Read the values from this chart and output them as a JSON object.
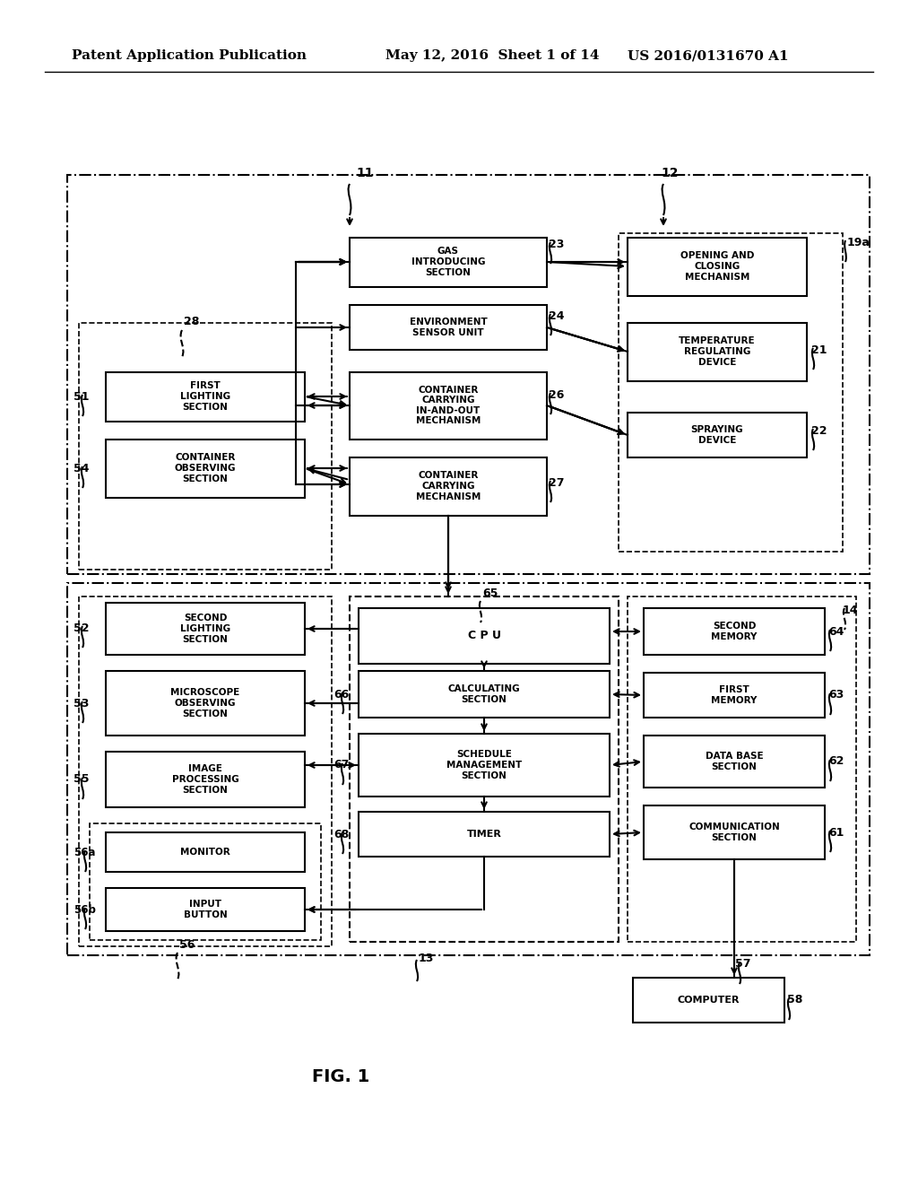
{
  "title_left": "Patent Application Publication",
  "title_mid": "May 12, 2016  Sheet 1 of 14",
  "title_right": "US 2016/0131670 A1",
  "fig_label": "FIG. 1",
  "background": "#ffffff",
  "text_color": "#000000",
  "box_color": "#000000",
  "header_fontsize": 11,
  "label_fontsize": 7.5,
  "fig_fontsize": 14
}
